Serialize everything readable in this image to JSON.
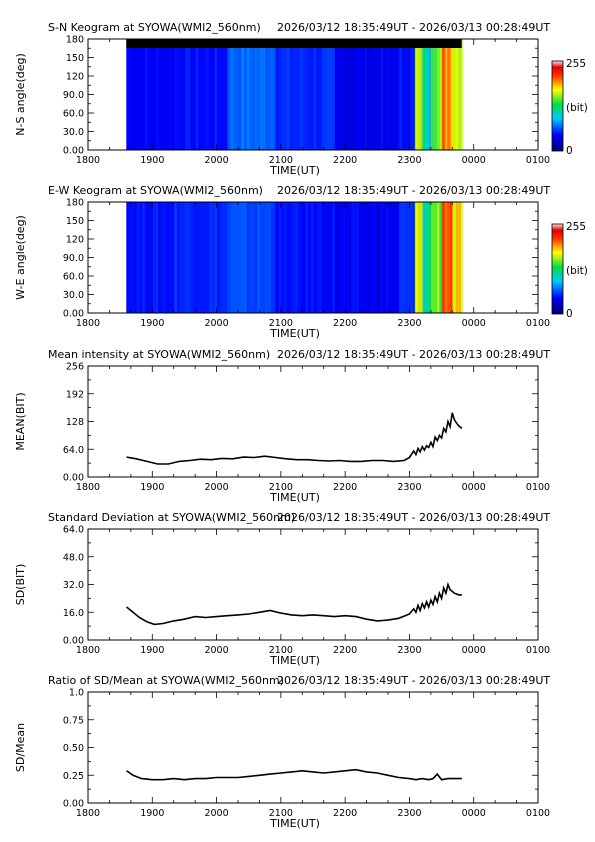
{
  "time_range": "2026/03/12 18:35:49UT - 2026/03/13 00:28:49UT",
  "colorbar": {
    "max": "255",
    "unit": "(bit)",
    "min": "0"
  },
  "chart_data": [
    {
      "type": "heatmap",
      "title": "S-N Keogram at SYOWA(WMI2_560nm)",
      "xlabel": "TIME(UT)",
      "ylabel": "N-S angle(deg)",
      "x_ticks": [
        "1800",
        "1900",
        "2000",
        "2100",
        "2200",
        "2300",
        "0000",
        "0100"
      ],
      "y_ticks": [
        "0.00",
        "30.0",
        "60.0",
        "90.0",
        "120",
        "150",
        "180"
      ],
      "xlim": [
        0,
        420
      ],
      "ylim": [
        0,
        180
      ],
      "data_start": 35.8,
      "data_end": 348.8,
      "levels": [
        {
          "from": 35.8,
          "to": 80,
          "v": 45
        },
        {
          "from": 80,
          "to": 130,
          "v": 48
        },
        {
          "from": 130,
          "to": 175,
          "v": 70
        },
        {
          "from": 175,
          "to": 230,
          "v": 55
        },
        {
          "from": 230,
          "to": 290,
          "v": 40
        },
        {
          "from": 290,
          "to": 305,
          "v": 50
        },
        {
          "from": 305,
          "to": 312,
          "v": 160
        },
        {
          "from": 312,
          "to": 320,
          "v": 110
        },
        {
          "from": 320,
          "to": 330,
          "v": 150
        },
        {
          "from": 330,
          "to": 340,
          "v": 200
        },
        {
          "from": 340,
          "to": 348.8,
          "v": 170
        }
      ]
    },
    {
      "type": "heatmap",
      "title": "E-W Keogram at SYOWA(WMI2_560nm)",
      "xlabel": "TIME(UT)",
      "ylabel": "W-E angle(deg)",
      "x_ticks": [
        "1800",
        "1900",
        "2000",
        "2100",
        "2200",
        "2300",
        "0000",
        "0100"
      ],
      "y_ticks": [
        "0.00",
        "30.0",
        "60.0",
        "90.0",
        "120",
        "150",
        "180"
      ],
      "xlim": [
        0,
        420
      ],
      "ylim": [
        0,
        180
      ],
      "data_start": 35.8,
      "data_end": 348.8,
      "levels": [
        {
          "from": 35.8,
          "to": 80,
          "v": 50
        },
        {
          "from": 80,
          "to": 130,
          "v": 55
        },
        {
          "from": 130,
          "to": 175,
          "v": 62
        },
        {
          "from": 175,
          "to": 230,
          "v": 48
        },
        {
          "from": 230,
          "to": 290,
          "v": 42
        },
        {
          "from": 290,
          "to": 305,
          "v": 55
        },
        {
          "from": 305,
          "to": 312,
          "v": 165
        },
        {
          "from": 312,
          "to": 320,
          "v": 115
        },
        {
          "from": 320,
          "to": 330,
          "v": 150
        },
        {
          "from": 330,
          "to": 340,
          "v": 210
        },
        {
          "from": 340,
          "to": 348.8,
          "v": 175
        }
      ]
    },
    {
      "type": "line",
      "title": "Mean intensity at SYOWA(WMI2_560nm)",
      "xlabel": "TIME(UT)",
      "ylabel": "MEAN(BIT)",
      "x_ticks": [
        "1800",
        "1900",
        "2000",
        "2100",
        "2200",
        "2300",
        "0000",
        "0100"
      ],
      "y_ticks": [
        "0.00",
        "64.0",
        "128",
        "192",
        "256"
      ],
      "xlim": [
        0,
        420
      ],
      "ylim": [
        0,
        256
      ],
      "x": [
        36,
        45,
        55,
        65,
        75,
        85,
        95,
        105,
        115,
        125,
        135,
        145,
        155,
        165,
        175,
        185,
        195,
        205,
        215,
        225,
        235,
        245,
        255,
        265,
        275,
        285,
        295,
        300,
        304,
        306,
        308,
        310,
        312,
        314,
        316,
        318,
        320,
        322,
        324,
        326,
        328,
        330,
        332,
        334,
        336,
        338,
        340,
        342,
        344,
        346,
        349
      ],
      "y": [
        46,
        42,
        36,
        30,
        30,
        36,
        38,
        41,
        40,
        43,
        42,
        46,
        45,
        48,
        45,
        42,
        40,
        40,
        38,
        37,
        38,
        36,
        36,
        38,
        38,
        36,
        38,
        45,
        60,
        52,
        66,
        58,
        70,
        62,
        72,
        68,
        80,
        70,
        92,
        84,
        96,
        90,
        112,
        104,
        128,
        116,
        148,
        132,
        124,
        118,
        112
      ]
    },
    {
      "type": "line",
      "title": "Standard Deviation at SYOWA(WMI2_560nm)",
      "xlabel": "TIME(UT)",
      "ylabel": "SD(BIT)",
      "x_ticks": [
        "1800",
        "1900",
        "2000",
        "2100",
        "2200",
        "2300",
        "0000",
        "0100"
      ],
      "y_ticks": [
        "0.00",
        "16.0",
        "32.0",
        "48.0",
        "64.0"
      ],
      "xlim": [
        0,
        420
      ],
      "ylim": [
        0,
        64
      ],
      "x": [
        36,
        42,
        48,
        55,
        62,
        70,
        80,
        90,
        100,
        110,
        120,
        130,
        140,
        150,
        160,
        170,
        180,
        190,
        200,
        210,
        220,
        230,
        240,
        250,
        260,
        270,
        280,
        290,
        296,
        300,
        304,
        306,
        308,
        310,
        312,
        314,
        316,
        318,
        320,
        322,
        324,
        326,
        328,
        330,
        332,
        334,
        336,
        338,
        340,
        342,
        344,
        346,
        349
      ],
      "y": [
        19,
        16,
        13,
        10.5,
        9,
        9.5,
        11,
        12,
        13.5,
        13,
        13.5,
        14,
        14.5,
        15,
        16,
        17,
        15.5,
        14.5,
        14,
        14.5,
        14,
        13.5,
        14,
        13.5,
        12,
        11,
        11.5,
        12.5,
        14,
        15,
        18,
        16,
        20,
        17,
        21,
        18.5,
        22,
        19,
        23,
        20.5,
        25,
        22,
        27,
        24,
        30,
        27,
        32,
        29,
        28,
        27,
        26.5,
        26,
        26
      ]
    },
    {
      "type": "line",
      "title": "Ratio of SD/Mean at SYOWA(WMI2_560nm)",
      "xlabel": "TIME(UT)",
      "ylabel": "SD/Mean",
      "x_ticks": [
        "1800",
        "1900",
        "2000",
        "2100",
        "2200",
        "2300",
        "0000",
        "0100"
      ],
      "y_ticks": [
        "0.00",
        "0.25",
        "0.50",
        "0.75",
        "1.0"
      ],
      "xlim": [
        0,
        420
      ],
      "ylim": [
        0,
        1.0
      ],
      "x": [
        36,
        42,
        50,
        60,
        70,
        80,
        90,
        100,
        110,
        120,
        130,
        140,
        150,
        160,
        170,
        180,
        190,
        200,
        210,
        220,
        230,
        240,
        250,
        260,
        270,
        280,
        290,
        300,
        306,
        312,
        318,
        322,
        326,
        330,
        336,
        342,
        349
      ],
      "y": [
        0.29,
        0.25,
        0.22,
        0.21,
        0.21,
        0.22,
        0.21,
        0.22,
        0.22,
        0.23,
        0.23,
        0.23,
        0.24,
        0.25,
        0.26,
        0.27,
        0.28,
        0.29,
        0.28,
        0.27,
        0.28,
        0.29,
        0.3,
        0.28,
        0.27,
        0.25,
        0.23,
        0.22,
        0.21,
        0.22,
        0.21,
        0.22,
        0.26,
        0.21,
        0.22,
        0.22,
        0.22
      ]
    }
  ]
}
